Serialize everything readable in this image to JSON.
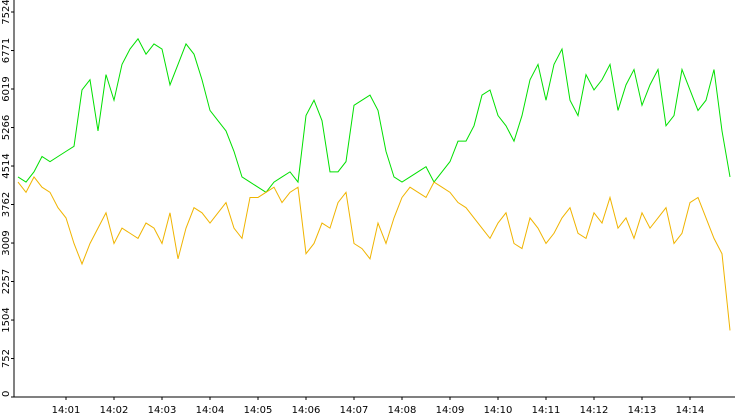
{
  "chart_data": {
    "type": "line",
    "categories": [
      null,
      null,
      null,
      null,
      null,
      null,
      "14:01",
      null,
      null,
      null,
      null,
      null,
      "14:02",
      null,
      null,
      null,
      null,
      null,
      "14:03",
      null,
      null,
      null,
      null,
      null,
      "14:04",
      null,
      null,
      null,
      null,
      null,
      "14:05",
      null,
      null,
      null,
      null,
      null,
      "14:06",
      null,
      null,
      null,
      null,
      null,
      "14:07",
      null,
      null,
      null,
      null,
      null,
      "14:08",
      null,
      null,
      null,
      null,
      null,
      "14:09",
      null,
      null,
      null,
      null,
      null,
      "14:10",
      null,
      null,
      null,
      null,
      null,
      "14:11",
      null,
      null,
      null,
      null,
      null,
      "14:12",
      null,
      null,
      null,
      null,
      null,
      "14:13",
      null,
      null,
      null,
      null,
      null,
      "14:14",
      null,
      null,
      null,
      null,
      null
    ],
    "series": [
      {
        "color": "#00e000",
        "values": [
          4300,
          4200,
          4400,
          4700,
          4600,
          4700,
          4800,
          4900,
          6000,
          6200,
          5200,
          6300,
          5800,
          6500,
          6800,
          7000,
          6700,
          6900,
          6800,
          6100,
          6500,
          6900,
          6700,
          6200,
          5600,
          5400,
          5200,
          4800,
          4300,
          4200,
          4100,
          4000,
          4200,
          4300,
          4400,
          4200,
          5500,
          5800,
          5400,
          4400,
          4400,
          4600,
          5700,
          5800,
          5900,
          5600,
          4800,
          4300,
          4200,
          4300,
          4400,
          4500,
          4200,
          4400,
          4600,
          5000,
          5000,
          5300,
          5900,
          6000,
          5500,
          5300,
          5000,
          5500,
          6200,
          6500,
          5800,
          6500,
          6800,
          5800,
          5500,
          6300,
          6000,
          6200,
          6500,
          5600,
          6100,
          6400,
          5700,
          6100,
          6400,
          5300,
          5500,
          6400,
          6000,
          5600,
          5800,
          6400,
          5200,
          4300
        ]
      },
      {
        "color": "#f0b400",
        "values": [
          4200,
          4000,
          4300,
          4100,
          4000,
          3700,
          3500,
          3000,
          2600,
          3000,
          3300,
          3600,
          3000,
          3300,
          3200,
          3100,
          3400,
          3300,
          3000,
          3600,
          2700,
          3300,
          3700,
          3600,
          3400,
          3600,
          3800,
          3300,
          3100,
          3900,
          3900,
          4000,
          4100,
          3800,
          4000,
          4100,
          2800,
          3000,
          3400,
          3300,
          3800,
          4000,
          3000,
          2900,
          2700,
          3400,
          3000,
          3500,
          3900,
          4100,
          4000,
          3900,
          4200,
          4100,
          4000,
          3800,
          3700,
          3500,
          3300,
          3100,
          3400,
          3600,
          3000,
          2900,
          3500,
          3300,
          3000,
          3200,
          3500,
          3700,
          3200,
          3100,
          3600,
          3400,
          3900,
          3300,
          3500,
          3100,
          3600,
          3300,
          3500,
          3700,
          3000,
          3200,
          3800,
          3900,
          3500,
          3100,
          2800,
          1300
        ]
      }
    ],
    "ylim": [
      0,
      7524
    ],
    "yticks": [
      0,
      752,
      1504,
      2257,
      3009,
      3762,
      4514,
      5266,
      6019,
      6771,
      7524
    ]
  }
}
